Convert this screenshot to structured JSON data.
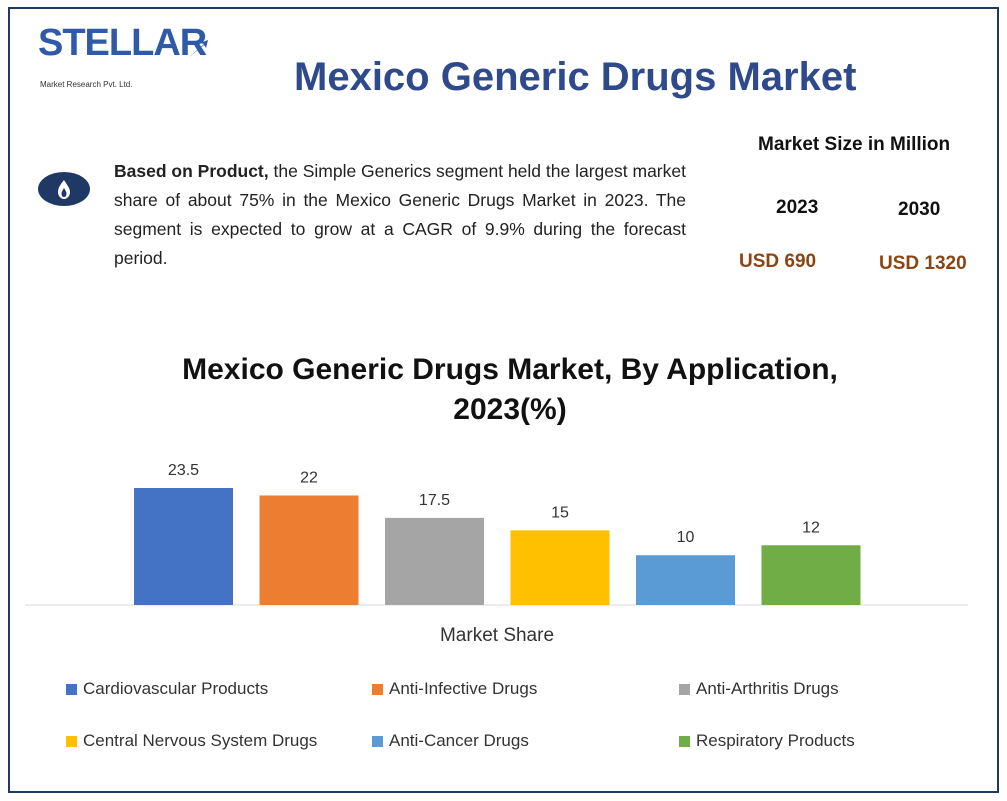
{
  "logo": {
    "name": "STELLAR",
    "tagline": "Market Research Pvt. Ltd."
  },
  "title": "Mexico Generic Drugs Market",
  "summary": {
    "lead": "Based on Product,",
    "body": " the Simple Generics segment held the largest market share of about 75% in the Mexico Generic Drugs Market in 2023. The segment is expected to grow at a CAGR of 9.9% during the forecast period."
  },
  "market_size": {
    "title": "Market Size in Million",
    "years": [
      "2023",
      "2030"
    ],
    "values": [
      "USD 690",
      "USD 1320"
    ]
  },
  "colors": {
    "frame": "#203864",
    "title": "#2e4a8c",
    "usd": "#8b4513"
  },
  "chart_data": {
    "type": "bar",
    "title": "Mexico Generic Drugs Market, By Application, 2023(%)",
    "xlabel": "Market Share",
    "ylabel": "",
    "categories": [
      "Cardiovascular Products",
      "Anti-Infective Drugs",
      "Anti-Arthritis Drugs",
      "Central Nervous System Drugs",
      "Anti-Cancer Drugs",
      "Respiratory Products"
    ],
    "values": [
      23.5,
      22,
      17.5,
      15,
      10,
      12
    ],
    "value_labels": [
      "23.5",
      "22",
      "17.5",
      "15",
      "10",
      "12"
    ],
    "colors": [
      "#4472c4",
      "#ed7d31",
      "#a5a5a5",
      "#ffc000",
      "#5b9bd5",
      "#70ad47"
    ],
    "ylim": [
      0,
      23.5
    ],
    "grid": false,
    "legend_position": "bottom"
  }
}
